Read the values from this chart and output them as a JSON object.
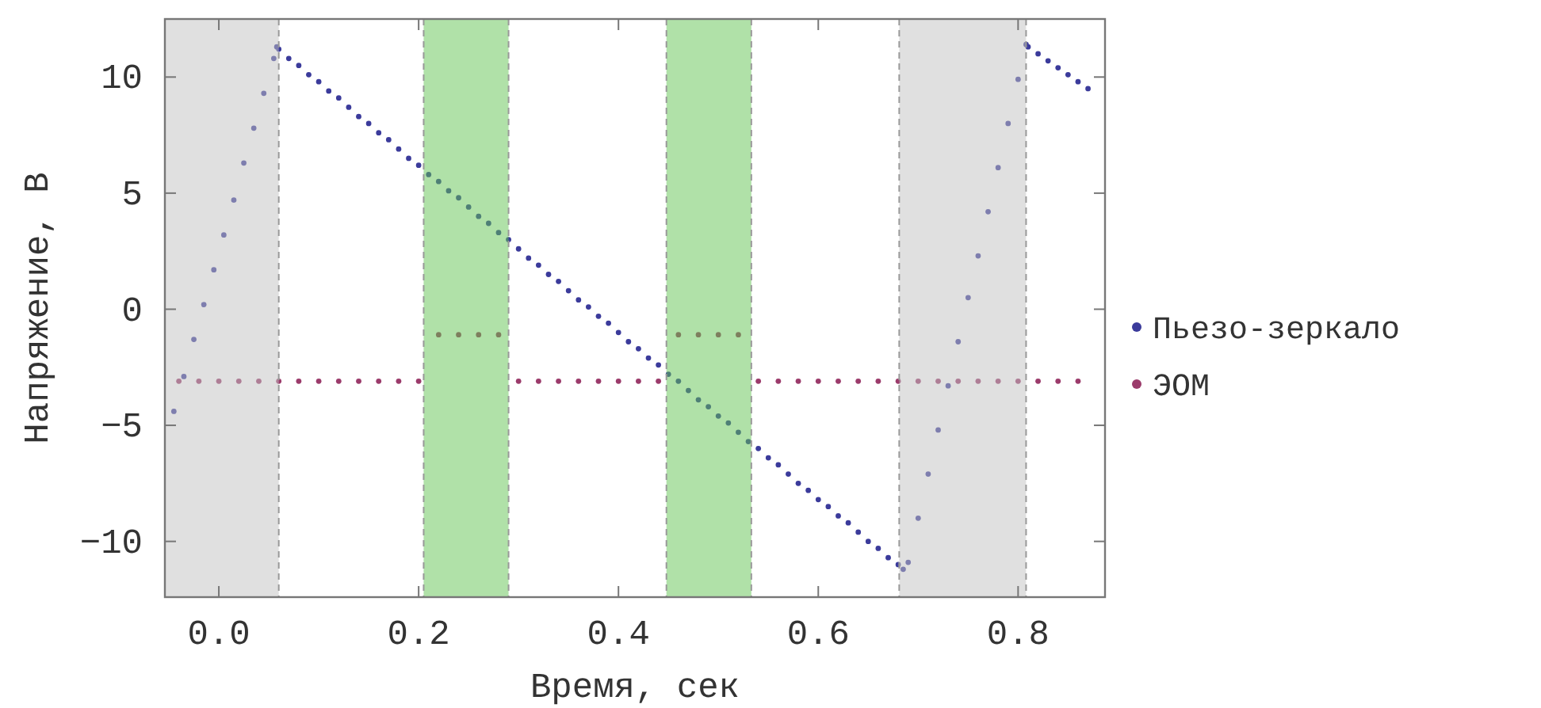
{
  "chart_data": {
    "type": "scatter",
    "xlabel": "Время, сек",
    "ylabel": "Напряжение, В",
    "xlim": [
      -0.054,
      0.887
    ],
    "ylim": [
      -12.4,
      12.5
    ],
    "xticks": [
      {
        "value": 0,
        "label": "0.0"
      },
      0.2,
      0.4,
      0.6,
      0.8
    ],
    "yticks": [
      -10,
      -5,
      0,
      5,
      10
    ],
    "marker": "circle",
    "legend": "right",
    "bands": [
      {
        "axis": "x",
        "from": -0.054,
        "to": 0.06,
        "color": "#c2c2c2"
      },
      {
        "axis": "x",
        "from": 0.205,
        "to": 0.29,
        "color": "#62c452"
      },
      {
        "axis": "x",
        "from": 0.448,
        "to": 0.533,
        "color": "#62c452"
      },
      {
        "axis": "x",
        "from": 0.681,
        "to": 0.808,
        "color": "#c2c2c2"
      }
    ],
    "series": [
      {
        "name": "Пьезо-зеркало",
        "color": "#3b3b9b",
        "x": [
          -0.045,
          -0.035,
          -0.025,
          -0.015,
          -0.005,
          0.005,
          0.015,
          0.025,
          0.035,
          0.045,
          0.055,
          0.058,
          0.06,
          0.07,
          0.08,
          0.09,
          0.1,
          0.11,
          0.12,
          0.13,
          0.14,
          0.15,
          0.16,
          0.17,
          0.18,
          0.19,
          0.2,
          0.21,
          0.22,
          0.23,
          0.24,
          0.25,
          0.26,
          0.27,
          0.28,
          0.29,
          0.3,
          0.31,
          0.32,
          0.33,
          0.34,
          0.35,
          0.36,
          0.37,
          0.38,
          0.39,
          0.4,
          0.41,
          0.42,
          0.43,
          0.44,
          0.45,
          0.46,
          0.47,
          0.48,
          0.49,
          0.5,
          0.51,
          0.52,
          0.53,
          0.54,
          0.55,
          0.56,
          0.57,
          0.58,
          0.59,
          0.6,
          0.61,
          0.62,
          0.63,
          0.64,
          0.65,
          0.66,
          0.67,
          0.68,
          0.685,
          0.69,
          0.7,
          0.71,
          0.72,
          0.73,
          0.74,
          0.75,
          0.76,
          0.77,
          0.78,
          0.79,
          0.8,
          0.808,
          0.81,
          0.82,
          0.83,
          0.84,
          0.85,
          0.86,
          0.87
        ],
        "values": [
          -4.4,
          -2.9,
          -1.3,
          0.2,
          1.7,
          3.2,
          4.7,
          6.3,
          7.8,
          9.3,
          10.8,
          11.3,
          11.2,
          10.8,
          10.5,
          10.1,
          9.8,
          9.4,
          9.1,
          8.7,
          8.3,
          8.0,
          7.6,
          7.3,
          6.9,
          6.5,
          6.2,
          5.8,
          5.5,
          5.1,
          4.8,
          4.4,
          4.0,
          3.7,
          3.3,
          3.0,
          2.6,
          2.2,
          1.9,
          1.5,
          1.2,
          0.8,
          0.4,
          0.1,
          -0.3,
          -0.6,
          -1.0,
          -1.4,
          -1.7,
          -2.1,
          -2.4,
          -2.8,
          -3.1,
          -3.5,
          -3.9,
          -4.2,
          -4.6,
          -4.9,
          -5.3,
          -5.7,
          -6.0,
          -6.4,
          -6.7,
          -7.1,
          -7.5,
          -7.8,
          -8.2,
          -8.5,
          -8.9,
          -9.2,
          -9.6,
          -10.0,
          -10.3,
          -10.7,
          -11.0,
          -11.2,
          -10.9,
          -9.0,
          -7.1,
          -5.2,
          -3.3,
          -1.4,
          0.5,
          2.3,
          4.2,
          6.1,
          8.0,
          9.9,
          11.4,
          11.3,
          11.0,
          10.7,
          10.4,
          10.1,
          9.8,
          9.5
        ]
      },
      {
        "name": "ЭОМ",
        "color": "#9b3b6b",
        "x": [
          -0.04,
          -0.02,
          0.0,
          0.02,
          0.04,
          0.06,
          0.08,
          0.1,
          0.12,
          0.14,
          0.16,
          0.18,
          0.2,
          0.22,
          0.24,
          0.26,
          0.28,
          0.3,
          0.32,
          0.34,
          0.36,
          0.38,
          0.4,
          0.42,
          0.44,
          0.46,
          0.48,
          0.5,
          0.52,
          0.54,
          0.56,
          0.58,
          0.6,
          0.62,
          0.64,
          0.66,
          0.68,
          0.7,
          0.72,
          0.74,
          0.76,
          0.78,
          0.8,
          0.82,
          0.84,
          0.86
        ],
        "values": [
          -3.1,
          -3.1,
          -3.1,
          -3.1,
          -3.1,
          -3.1,
          -3.1,
          -3.1,
          -3.1,
          -3.1,
          -3.1,
          -3.1,
          -3.1,
          -1.1,
          -1.1,
          -1.1,
          -1.1,
          -3.1,
          -3.1,
          -3.1,
          -3.1,
          -3.1,
          -3.1,
          -3.1,
          -3.1,
          -1.1,
          -1.1,
          -1.1,
          -1.1,
          -3.1,
          -3.1,
          -3.1,
          -3.1,
          -3.1,
          -3.1,
          -3.1,
          -3.1,
          -3.1,
          -3.1,
          -3.1,
          -3.1,
          -3.1,
          -3.1,
          -3.1,
          -3.1,
          -3.1
        ]
      }
    ]
  }
}
